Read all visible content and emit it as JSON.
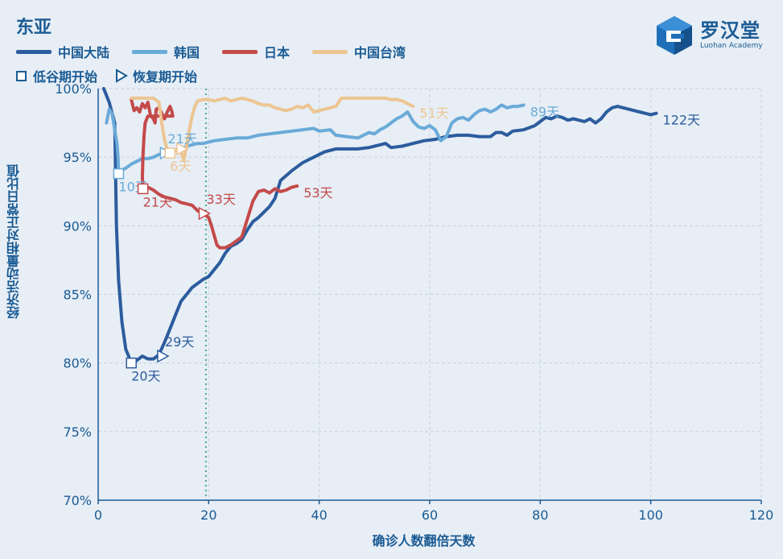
{
  "title": "东亚",
  "logo": {
    "name_cn": "罗汉堂",
    "name_en": "Luohan Academy",
    "icon": "luohan-logo-icon"
  },
  "legend": {
    "series": [
      {
        "name": "中国大陆",
        "color": "#2c5c9e"
      },
      {
        "name": "韩国",
        "color": "#6aaad8"
      },
      {
        "name": "日本",
        "color": "#c44a4a"
      },
      {
        "name": "中国台湾",
        "color": "#edc592"
      }
    ],
    "markers": [
      {
        "label": "低谷期开始",
        "shape": "square"
      },
      {
        "label": "恢复期开始",
        "shape": "triangle"
      }
    ]
  },
  "chart_data": {
    "type": "line",
    "xlabel": "确诊人数翻倍天数",
    "ylabel": "经济活动量相对正常日比值",
    "xlim": [
      0,
      120
    ],
    "ylim": [
      70,
      100
    ],
    "xticks": [
      0,
      20,
      40,
      60,
      80,
      100,
      120
    ],
    "yticks": [
      70,
      75,
      80,
      85,
      90,
      95,
      100
    ],
    "ytick_labels": [
      "70%",
      "75%",
      "80%",
      "85%",
      "90%",
      "95%",
      "100%"
    ],
    "grid": true,
    "reference_line": {
      "x": 19.5,
      "style": "dotted",
      "color": "#4aa987"
    },
    "series": [
      {
        "name": "中国大陆",
        "color": "#2c5c9e",
        "points": [
          [
            1,
            100
          ],
          [
            2,
            99
          ],
          [
            3,
            97.5
          ],
          [
            3.3,
            90
          ],
          [
            3.7,
            86
          ],
          [
            4.3,
            83
          ],
          [
            5,
            81
          ],
          [
            5.5,
            80.5
          ],
          [
            6,
            80
          ],
          [
            6.5,
            80
          ],
          [
            7,
            80.2
          ],
          [
            8,
            80.5
          ],
          [
            9,
            80.3
          ],
          [
            10,
            80.3
          ],
          [
            11,
            80.6
          ],
          [
            12,
            81.5
          ],
          [
            13,
            82.5
          ],
          [
            14,
            83.5
          ],
          [
            15,
            84.5
          ],
          [
            16,
            85
          ],
          [
            17,
            85.5
          ],
          [
            18,
            85.8
          ],
          [
            19,
            86.1
          ],
          [
            20,
            86.3
          ],
          [
            21,
            86.8
          ],
          [
            22,
            87.3
          ],
          [
            23,
            88
          ],
          [
            24,
            88.5
          ],
          [
            25,
            88.7
          ],
          [
            26,
            89
          ],
          [
            27,
            89.7
          ],
          [
            28,
            90.3
          ],
          [
            29,
            90.6
          ],
          [
            30,
            91
          ],
          [
            31,
            91.4
          ],
          [
            32,
            92
          ],
          [
            33,
            93.3
          ],
          [
            35,
            94
          ],
          [
            37,
            94.6
          ],
          [
            39,
            95
          ],
          [
            41,
            95.4
          ],
          [
            43,
            95.6
          ],
          [
            45,
            95.6
          ],
          [
            47,
            95.6
          ],
          [
            49,
            95.7
          ],
          [
            51,
            95.9
          ],
          [
            52,
            96
          ],
          [
            53,
            95.7
          ],
          [
            55,
            95.8
          ],
          [
            57,
            96
          ],
          [
            59,
            96.2
          ],
          [
            61,
            96.3
          ],
          [
            63,
            96.5
          ],
          [
            65,
            96.6
          ],
          [
            67,
            96.6
          ],
          [
            69,
            96.5
          ],
          [
            71,
            96.5
          ],
          [
            72,
            96.8
          ],
          [
            73,
            96.8
          ],
          [
            74,
            96.6
          ],
          [
            75,
            96.9
          ],
          [
            77,
            97
          ],
          [
            79,
            97.3
          ],
          [
            80,
            97.6
          ],
          [
            81,
            97.9
          ],
          [
            82,
            97.8
          ],
          [
            83,
            98
          ],
          [
            84,
            97.9
          ],
          [
            85,
            97.7
          ],
          [
            86,
            97.8
          ],
          [
            87,
            97.7
          ],
          [
            88,
            97.6
          ],
          [
            89,
            97.8
          ],
          [
            90,
            97.5
          ],
          [
            91,
            97.8
          ],
          [
            92,
            98.3
          ],
          [
            93,
            98.6
          ],
          [
            94,
            98.7
          ],
          [
            95,
            98.6
          ],
          [
            96,
            98.5
          ],
          [
            97,
            98.4
          ],
          [
            98,
            98.3
          ],
          [
            99,
            98.2
          ],
          [
            100,
            98.1
          ],
          [
            101,
            98.2
          ]
        ],
        "annotations": [
          {
            "x": 6,
            "y": 80,
            "text": "20天",
            "marker": "square"
          },
          {
            "x": 11.5,
            "y": 80.5,
            "text": "29天",
            "marker": "triangle"
          },
          {
            "x": 101,
            "y": 98.2,
            "text": "122天"
          }
        ]
      },
      {
        "name": "韩国",
        "color": "#6aaad8",
        "points": [
          [
            1.5,
            97.5
          ],
          [
            2,
            98.5
          ],
          [
            2.5,
            98.2
          ],
          [
            3,
            97
          ],
          [
            3.4,
            96
          ],
          [
            3.6,
            95
          ],
          [
            3.7,
            93.8
          ],
          [
            4,
            94
          ],
          [
            5,
            94.2
          ],
          [
            6,
            94.5
          ],
          [
            7,
            94.7
          ],
          [
            8,
            94.9
          ],
          [
            9,
            94.9
          ],
          [
            10,
            95
          ],
          [
            11,
            95.2
          ],
          [
            12,
            95.3
          ],
          [
            13,
            95.4
          ],
          [
            14,
            95.5
          ],
          [
            15,
            95.6
          ],
          [
            16,
            95.8
          ],
          [
            17,
            95.9
          ],
          [
            18,
            96
          ],
          [
            19,
            96
          ],
          [
            20,
            96.1
          ],
          [
            21,
            96.2
          ],
          [
            23,
            96.3
          ],
          [
            25,
            96.4
          ],
          [
            27,
            96.4
          ],
          [
            29,
            96.6
          ],
          [
            31,
            96.7
          ],
          [
            33,
            96.8
          ],
          [
            35,
            96.9
          ],
          [
            37,
            97
          ],
          [
            39,
            97.1
          ],
          [
            40,
            96.9
          ],
          [
            42,
            97
          ],
          [
            43,
            96.6
          ],
          [
            45,
            96.5
          ],
          [
            47,
            96.4
          ],
          [
            48,
            96.6
          ],
          [
            49,
            96.8
          ],
          [
            50,
            96.7
          ],
          [
            51,
            97
          ],
          [
            52,
            97.2
          ],
          [
            53,
            97.5
          ],
          [
            54,
            97.8
          ],
          [
            55,
            98
          ],
          [
            56,
            98.3
          ],
          [
            57,
            97.6
          ],
          [
            58,
            97.2
          ],
          [
            59,
            97.1
          ],
          [
            60,
            97.3
          ],
          [
            61,
            97
          ],
          [
            62,
            96.2
          ],
          [
            63,
            96.5
          ],
          [
            64,
            97.5
          ],
          [
            65,
            97.8
          ],
          [
            66,
            97.9
          ],
          [
            67,
            97.7
          ],
          [
            68,
            98.1
          ],
          [
            69,
            98.4
          ],
          [
            70,
            98.5
          ],
          [
            71,
            98.3
          ],
          [
            72,
            98.5
          ],
          [
            73,
            98.8
          ],
          [
            74,
            98.6
          ],
          [
            75,
            98.7
          ],
          [
            76,
            98.7
          ],
          [
            77,
            98.8
          ]
        ],
        "annotations": [
          {
            "x": 3.7,
            "y": 93.8,
            "text": "10天",
            "marker": "square"
          },
          {
            "x": 12,
            "y": 95.3,
            "text": "21天",
            "marker": "triangle"
          },
          {
            "x": 77,
            "y": 98.8,
            "text": "89天"
          }
        ]
      },
      {
        "name": "日本",
        "color": "#c44a4a",
        "points": [
          [
            6,
            99.2
          ],
          [
            6.5,
            98.4
          ],
          [
            7,
            98.6
          ],
          [
            7.5,
            98.3
          ],
          [
            8,
            98.9
          ],
          [
            8.5,
            98.6
          ],
          [
            9,
            99
          ],
          [
            9.5,
            98
          ],
          [
            10,
            97.8
          ],
          [
            10.3,
            97.5
          ],
          [
            10.5,
            98.5
          ],
          [
            11,
            98.6
          ],
          [
            11.5,
            98.2
          ],
          [
            12,
            97.8
          ],
          [
            12.5,
            98.3
          ],
          [
            13,
            98.7
          ],
          [
            13.3,
            98.4
          ],
          [
            13.5,
            98
          ],
          [
            9,
            98
          ],
          [
            8.5,
            97.5
          ],
          [
            8.3,
            96.6
          ],
          [
            8.1,
            95
          ],
          [
            8,
            93.5
          ],
          [
            8.2,
            92.6
          ],
          [
            9,
            92.8
          ],
          [
            10,
            92.6
          ],
          [
            11,
            92.3
          ],
          [
            12,
            92.1
          ],
          [
            13,
            92
          ],
          [
            14,
            91.9
          ],
          [
            15,
            91.7
          ],
          [
            16,
            91.6
          ],
          [
            17,
            91.5
          ],
          [
            18,
            91.1
          ],
          [
            19,
            90.9
          ],
          [
            20,
            90.6
          ],
          [
            20.5,
            90
          ],
          [
            21,
            89.3
          ],
          [
            21.5,
            88.6
          ],
          [
            22,
            88.4
          ],
          [
            23,
            88.4
          ],
          [
            24,
            88.6
          ],
          [
            25,
            88.9
          ],
          [
            26,
            89.2
          ],
          [
            27,
            90.5
          ],
          [
            28,
            91.8
          ],
          [
            29,
            92.5
          ],
          [
            30,
            92.6
          ],
          [
            31,
            92.4
          ],
          [
            32,
            92.7
          ],
          [
            33,
            92.5
          ],
          [
            34,
            92.6
          ],
          [
            35,
            92.8
          ],
          [
            36,
            92.9
          ]
        ],
        "annotations": [
          {
            "x": 8.1,
            "y": 92.7,
            "text": "21天",
            "marker": "square"
          },
          {
            "x": 19,
            "y": 90.9,
            "text": "33天",
            "marker": "triangle"
          },
          {
            "x": 36,
            "y": 92.9,
            "text": "53天"
          }
        ]
      },
      {
        "name": "中国台湾",
        "color": "#edc592",
        "points": [
          [
            6,
            99.3
          ],
          [
            8,
            99.3
          ],
          [
            10,
            99.3
          ],
          [
            11,
            99
          ],
          [
            11.5,
            97.5
          ],
          [
            12,
            96.3
          ],
          [
            12.5,
            95.5
          ],
          [
            13,
            95.3
          ],
          [
            14,
            95.5
          ],
          [
            15,
            95.4
          ],
          [
            15.5,
            94.8
          ],
          [
            16,
            95.8
          ],
          [
            16.5,
            97
          ],
          [
            17,
            98
          ],
          [
            17.5,
            98.7
          ],
          [
            18,
            99.1
          ],
          [
            19,
            99.2
          ],
          [
            20,
            99.2
          ],
          [
            21,
            99.1
          ],
          [
            22,
            99.2
          ],
          [
            23,
            99.3
          ],
          [
            24,
            99.1
          ],
          [
            25,
            99.2
          ],
          [
            26,
            99.3
          ],
          [
            27,
            99.2
          ],
          [
            28,
            99.1
          ],
          [
            29,
            98.9
          ],
          [
            30,
            98.8
          ],
          [
            31,
            98.8
          ],
          [
            32,
            98.6
          ],
          [
            33,
            98.5
          ],
          [
            34,
            98.4
          ],
          [
            35,
            98.5
          ],
          [
            36,
            98.7
          ],
          [
            37,
            98.6
          ],
          [
            38,
            98.8
          ],
          [
            39,
            98.3
          ],
          [
            40,
            98.4
          ],
          [
            41,
            98.5
          ],
          [
            42,
            98.6
          ],
          [
            43,
            98.7
          ],
          [
            44,
            99.3
          ],
          [
            46,
            99.3
          ],
          [
            48,
            99.3
          ],
          [
            50,
            99.3
          ],
          [
            52,
            99.3
          ],
          [
            53,
            99.2
          ],
          [
            54,
            99.2
          ],
          [
            55,
            99.1
          ],
          [
            56,
            98.9
          ],
          [
            57,
            98.7
          ]
        ],
        "annotations": [
          {
            "x": 13,
            "y": 95.3,
            "text": "6天",
            "marker": "square"
          },
          {
            "x": 15,
            "y": 95.6,
            "text": "",
            "marker": "triangle"
          },
          {
            "x": 57,
            "y": 98.7,
            "text": "51天"
          }
        ]
      }
    ]
  }
}
